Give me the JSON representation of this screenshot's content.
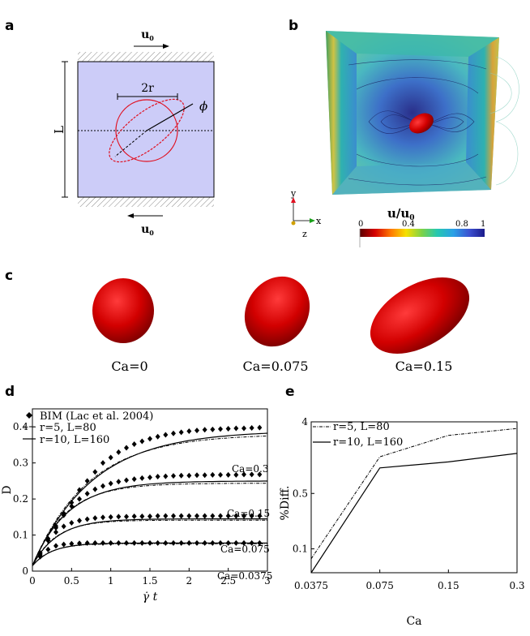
{
  "panels": {
    "a": {
      "label": "a",
      "top_velocity": "u",
      "top_velocity_sub": "0",
      "bottom_velocity": "u",
      "bottom_velocity_sub": "0",
      "length_label": "L",
      "radius_label": "2r",
      "angle_label": "ϕ"
    },
    "b": {
      "label": "b",
      "axis_y": "y",
      "axis_x": "x",
      "axis_z": "z",
      "colorbar_title": "u/u",
      "colorbar_title_sub": "0",
      "colorbar_ticks": [
        "0",
        "0.4",
        "0.8",
        "1"
      ]
    },
    "c": {
      "label": "c",
      "captions": [
        "Ca=0",
        "Ca=0.075",
        "Ca=0.15"
      ]
    },
    "d": {
      "label": "d"
    },
    "e": {
      "label": "e"
    }
  },
  "chart_data": [
    {
      "id": "d",
      "type": "line",
      "xlabel": "γ̇ t",
      "ylabel": "D",
      "xlim": [
        0,
        3
      ],
      "ylim": [
        0,
        0.45
      ],
      "xticks": [
        "0",
        "0.5",
        "1",
        "1.5",
        "2",
        "2.5",
        "3"
      ],
      "yticks": [
        "0",
        "0.1",
        "0.2",
        "0.3",
        "0.4"
      ],
      "legend": [
        "BIM (Lac et al. 2004)",
        "r=5,   L=80",
        "r=10, L=160"
      ],
      "annotations": [
        "Ca=0.3",
        "Ca=0.15",
        "Ca=0.075",
        "Ca=0.0375"
      ],
      "series": [
        {
          "name": "Ca=0.3",
          "steady": 0.39,
          "bim_x": [
            0.1,
            0.2,
            0.3,
            0.4,
            0.5,
            0.6,
            0.7,
            0.8,
            0.9,
            1.0,
            1.1,
            1.2,
            1.3,
            1.4,
            1.5,
            1.6,
            1.7,
            1.8,
            1.9,
            2.0,
            2.1,
            2.2,
            2.3,
            2.4,
            2.5,
            2.6,
            2.7,
            2.8,
            2.9
          ],
          "bim_y": [
            0.045,
            0.085,
            0.12,
            0.16,
            0.19,
            0.225,
            0.25,
            0.275,
            0.3,
            0.315,
            0.33,
            0.342,
            0.352,
            0.36,
            0.367,
            0.373,
            0.378,
            0.382,
            0.385,
            0.388,
            0.39,
            0.392,
            0.393,
            0.394,
            0.395,
            0.396,
            0.396,
            0.397,
            0.398
          ]
        },
        {
          "name": "Ca=0.15",
          "steady": 0.25,
          "bim_x": [
            0.1,
            0.2,
            0.3,
            0.4,
            0.5,
            0.6,
            0.7,
            0.8,
            0.9,
            1.0,
            1.1,
            1.2,
            1.3,
            1.4,
            1.5,
            1.6,
            1.7,
            1.8,
            1.9,
            2.0,
            2.1,
            2.2,
            2.3,
            2.4,
            2.5,
            2.6,
            2.7,
            2.8,
            2.9
          ],
          "bim_y": [
            0.05,
            0.09,
            0.125,
            0.155,
            0.18,
            0.2,
            0.215,
            0.227,
            0.236,
            0.243,
            0.248,
            0.252,
            0.255,
            0.258,
            0.26,
            0.262,
            0.263,
            0.264,
            0.265,
            0.265,
            0.266,
            0.266,
            0.267,
            0.267,
            0.267,
            0.267,
            0.268,
            0.268,
            0.268
          ]
        },
        {
          "name": "Ca=0.075",
          "steady": 0.145,
          "bim_x": [
            0.1,
            0.2,
            0.3,
            0.4,
            0.5,
            0.6,
            0.7,
            0.8,
            0.9,
            1.0,
            1.1,
            1.2,
            1.3,
            1.4,
            1.5,
            1.6,
            1.7,
            1.8,
            1.9,
            2.0,
            2.1,
            2.2,
            2.3,
            2.4,
            2.5,
            2.6,
            2.7,
            2.8,
            2.9
          ],
          "bim_y": [
            0.05,
            0.085,
            0.108,
            0.124,
            0.134,
            0.14,
            0.144,
            0.147,
            0.149,
            0.15,
            0.151,
            0.151,
            0.152,
            0.152,
            0.152,
            0.153,
            0.153,
            0.153,
            0.153,
            0.153,
            0.153,
            0.153,
            0.153,
            0.153,
            0.153,
            0.153,
            0.153,
            0.153,
            0.153
          ]
        },
        {
          "name": "Ca=0.0375",
          "steady": 0.078,
          "bim_x": [
            0.1,
            0.2,
            0.3,
            0.4,
            0.5,
            0.6,
            0.7,
            0.8,
            0.9,
            1.0,
            1.1,
            1.2,
            1.3,
            1.4,
            1.5,
            1.6,
            1.7,
            1.8,
            1.9,
            2.0,
            2.1,
            2.2,
            2.3,
            2.4,
            2.5,
            2.6,
            2.7,
            2.8,
            2.9
          ],
          "bim_y": [
            0.04,
            0.06,
            0.07,
            0.074,
            0.076,
            0.077,
            0.078,
            0.078,
            0.078,
            0.078,
            0.078,
            0.078,
            0.078,
            0.078,
            0.078,
            0.078,
            0.078,
            0.078,
            0.078,
            0.078,
            0.078,
            0.078,
            0.078,
            0.078,
            0.078,
            0.078,
            0.078,
            0.078,
            0.078
          ]
        }
      ]
    },
    {
      "id": "e",
      "type": "line",
      "xlabel": "Ca",
      "ylabel": "%Diff.",
      "categories": [
        "0.0375",
        "0.075",
        "0.15",
        "0.3"
      ],
      "yticks": [
        "0.1",
        "0.5",
        "4"
      ],
      "ylim_log": [
        0.05,
        4
      ],
      "legend": [
        "r=5,   L=80",
        "r=10, L=160"
      ],
      "series": [
        {
          "name": "r=5,   L=80",
          "values": [
            0.075,
            1.45,
            2.7,
            3.3
          ]
        },
        {
          "name": "r=10, L=160",
          "values": [
            0.05,
            1.05,
            1.25,
            1.6
          ]
        }
      ]
    }
  ]
}
